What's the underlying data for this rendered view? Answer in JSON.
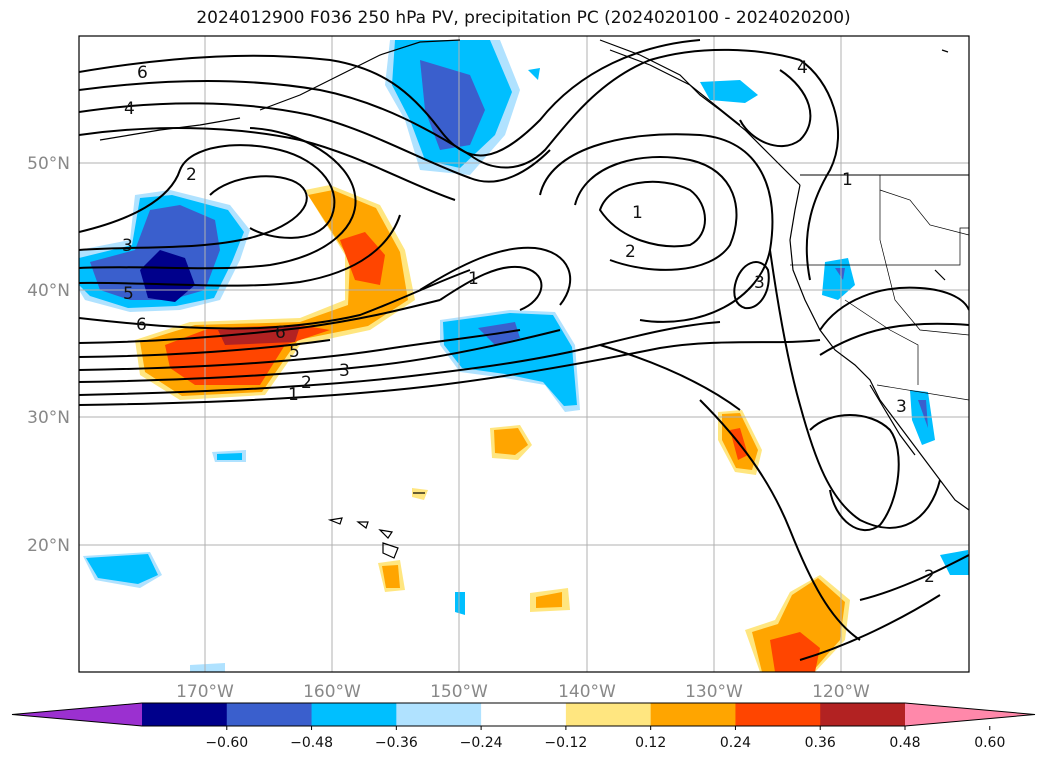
{
  "title": "2024012900 F036 250 hPa PV, precipitation PC (2024020100 - 2024020200)",
  "map": {
    "lon_labels": [
      "170°W",
      "160°W",
      "150°W",
      "140°W",
      "130°W",
      "120°W"
    ],
    "lat_labels": [
      "50°N",
      "40°N",
      "30°N",
      "20°N"
    ]
  },
  "colorbar": {
    "ticks": [
      "−0.60",
      "−0.48",
      "−0.36",
      "−0.24",
      "−0.12",
      "0.12",
      "0.24",
      "0.36",
      "0.48",
      "0.60"
    ],
    "colors": [
      "#9b30d0",
      "#00008b",
      "#3a5fcd",
      "#00bfff",
      "#b0e2ff",
      "#ffffff",
      "#ffe680",
      "#ffa500",
      "#ff4500",
      "#b22222",
      "#ff88aa"
    ]
  },
  "contour_labels": [
    "6",
    "4",
    "2",
    "3",
    "5",
    "6",
    "6",
    "5",
    "3",
    "2",
    "1",
    "1",
    "1",
    "2",
    "3",
    "4",
    "1",
    "2",
    "3"
  ],
  "colors": {
    "grid": "#b0b0b0",
    "contour": "#000000",
    "coast": "#000000"
  }
}
